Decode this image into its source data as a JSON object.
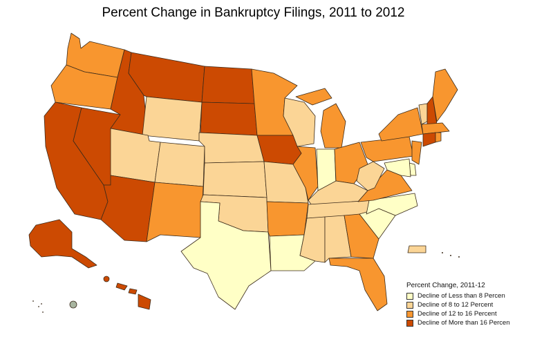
{
  "title": "Percent Change in Bankruptcy Filings, 2011 to 2012",
  "legend": {
    "title": "Percent Change, 2011-12",
    "items": [
      {
        "label": "Decline of Less than 8 Percen",
        "color": "#ffffc6"
      },
      {
        "label": "Decline of 8 to 12 Percent",
        "color": "#fbd596"
      },
      {
        "label": "Decline of 12 to 16 Percent",
        "color": "#f8962f"
      },
      {
        "label": "Decline of More than 16 Percen",
        "color": "#cc4a02"
      }
    ]
  },
  "chart_data": {
    "type": "choropleth",
    "title": "Percent Change in Bankruptcy Filings, 2011 to 2012",
    "legend_position": "bottom-right",
    "categories": [
      "Decline of Less than 8 Percen",
      "Decline of 8 to 12 Percent",
      "Decline of 12 to 16 Percent",
      "Decline of More than 16 Percen"
    ],
    "regions": [
      {
        "state": "WA",
        "class": 2
      },
      {
        "state": "OR",
        "class": 2
      },
      {
        "state": "CA",
        "class": 3
      },
      {
        "state": "NV",
        "class": 3
      },
      {
        "state": "ID",
        "class": 3
      },
      {
        "state": "MT",
        "class": 3
      },
      {
        "state": "WY",
        "class": 1
      },
      {
        "state": "UT",
        "class": 1
      },
      {
        "state": "AZ",
        "class": 3
      },
      {
        "state": "CO",
        "class": 1
      },
      {
        "state": "NM",
        "class": 2
      },
      {
        "state": "ND",
        "class": 3
      },
      {
        "state": "SD",
        "class": 3
      },
      {
        "state": "NE",
        "class": 1
      },
      {
        "state": "KS",
        "class": 1
      },
      {
        "state": "OK",
        "class": 1
      },
      {
        "state": "TX",
        "class": 0
      },
      {
        "state": "MN",
        "class": 2
      },
      {
        "state": "IA",
        "class": 3
      },
      {
        "state": "MO",
        "class": 1
      },
      {
        "state": "AR",
        "class": 2
      },
      {
        "state": "LA",
        "class": 0
      },
      {
        "state": "WI",
        "class": 1
      },
      {
        "state": "IL",
        "class": 2
      },
      {
        "state": "MI",
        "class": 2
      },
      {
        "state": "IN",
        "class": 0
      },
      {
        "state": "OH",
        "class": 2
      },
      {
        "state": "KY",
        "class": 1
      },
      {
        "state": "TN",
        "class": 1
      },
      {
        "state": "MS",
        "class": 1
      },
      {
        "state": "AL",
        "class": 1
      },
      {
        "state": "GA",
        "class": 2
      },
      {
        "state": "FL",
        "class": 2
      },
      {
        "state": "SC",
        "class": 0
      },
      {
        "state": "NC",
        "class": 0
      },
      {
        "state": "VA",
        "class": 2
      },
      {
        "state": "WV",
        "class": 1
      },
      {
        "state": "PA",
        "class": 2
      },
      {
        "state": "NY",
        "class": 2
      },
      {
        "state": "VT",
        "class": 1
      },
      {
        "state": "NH",
        "class": 3
      },
      {
        "state": "ME",
        "class": 2
      },
      {
        "state": "MA",
        "class": 2
      },
      {
        "state": "CT",
        "class": 3
      },
      {
        "state": "RI",
        "class": 2
      },
      {
        "state": "NJ",
        "class": 2
      },
      {
        "state": "DE",
        "class": 0
      },
      {
        "state": "MD",
        "class": 0
      },
      {
        "state": "AK",
        "class": 3
      },
      {
        "state": "HI",
        "class": 3
      },
      {
        "state": "PR",
        "class": 1
      }
    ]
  }
}
